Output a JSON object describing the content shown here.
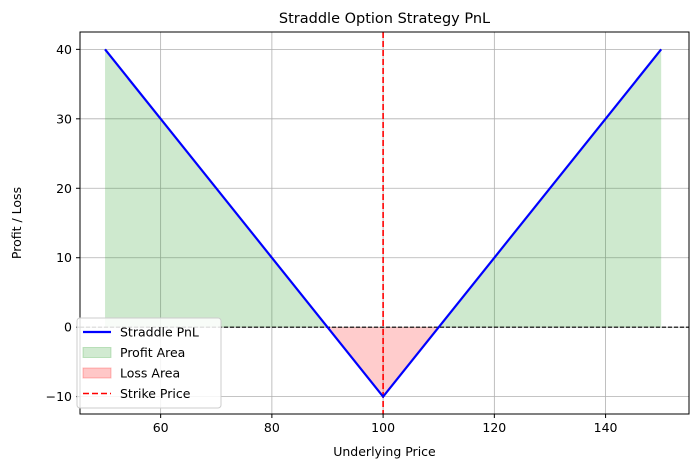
{
  "chart_data": {
    "type": "line",
    "title": "Straddle Option Strategy PnL",
    "xlabel": "Underlying Price",
    "ylabel": "Profit / Loss",
    "xlim": [
      45.5,
      155
    ],
    "ylim": [
      -12.5,
      42.5
    ],
    "xticks": [
      60,
      80,
      100,
      120,
      140
    ],
    "yticks": [
      -10,
      0,
      10,
      20,
      30,
      40
    ],
    "grid": true,
    "legend_position": "lower-left",
    "strike": 100,
    "premium": 10,
    "x_range": [
      50,
      150
    ],
    "series": [
      {
        "name": "Straddle PnL",
        "kind": "line",
        "color": "#0000ff",
        "x": [
          50,
          100,
          150
        ],
        "y": [
          40,
          -10,
          40
        ]
      },
      {
        "name": "Profit Area",
        "kind": "fill",
        "color": "#2ca02c"
      },
      {
        "name": "Loss Area",
        "kind": "fill",
        "color": "#ff0000"
      },
      {
        "name": "Strike Price",
        "kind": "vline",
        "color": "#ff0000",
        "x": 100
      }
    ],
    "zero_line_color": "#000000"
  }
}
